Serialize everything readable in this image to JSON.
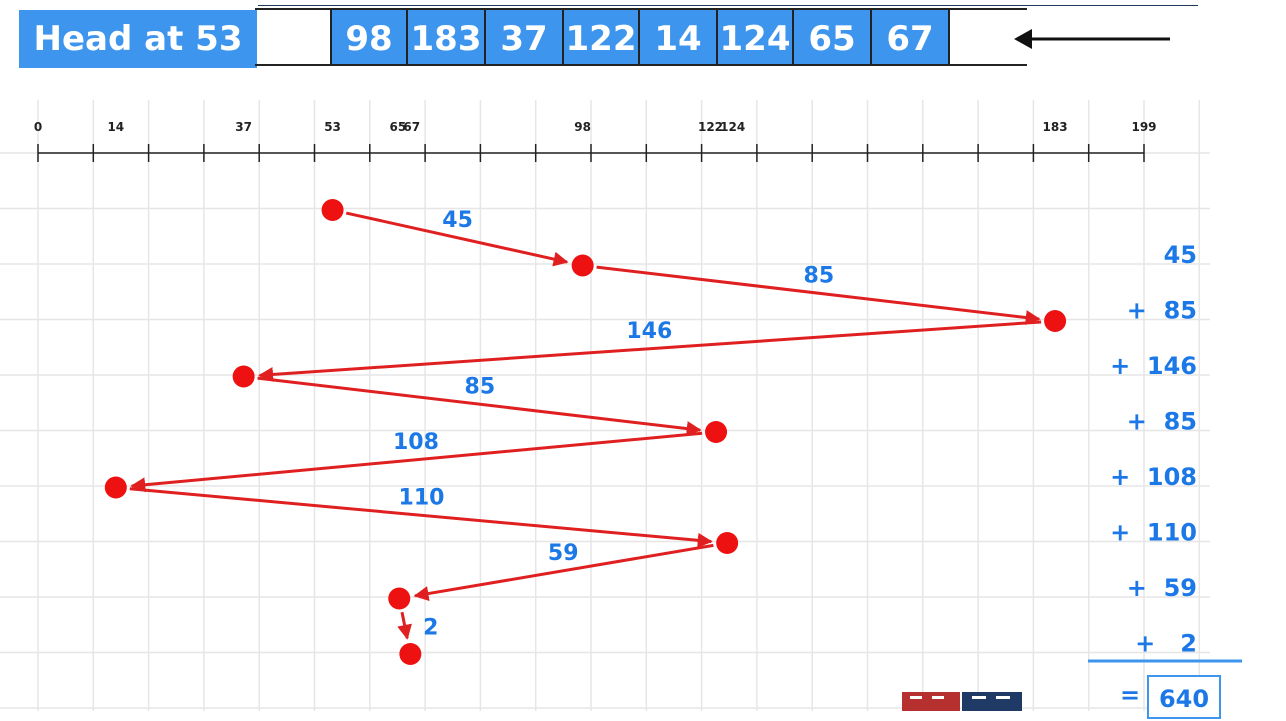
{
  "header": {
    "head_label": "Head at 53",
    "queue": [
      "98",
      "183",
      "37",
      "122",
      "14",
      "124",
      "65",
      "67"
    ]
  },
  "axis": {
    "min": 0,
    "max": 199,
    "tick_labels": [
      {
        "value": 0,
        "label": "0"
      },
      {
        "value": 14,
        "label": "14"
      },
      {
        "value": 37,
        "label": "37"
      },
      {
        "value": 53,
        "label": "53"
      },
      {
        "value": 65,
        "label": "65"
      },
      {
        "value": 67,
        "label": "67"
      },
      {
        "value": 98,
        "label": "98"
      },
      {
        "value": 122,
        "label": "122"
      },
      {
        "value": 124,
        "label": "124"
      },
      {
        "value": 183,
        "label": "183"
      },
      {
        "value": 199,
        "label": "199"
      }
    ]
  },
  "path": {
    "positions": [
      53,
      98,
      183,
      37,
      122,
      14,
      124,
      65,
      67
    ],
    "distances": [
      "45",
      "85",
      "146",
      "85",
      "108",
      "110",
      "59",
      "2"
    ],
    "point_color": "#ee1111",
    "arrow_color": "#e02020"
  },
  "summation": {
    "terms": [
      "45",
      "+  85",
      "+  146",
      "+  85",
      "+  108",
      "+  110",
      "+  59",
      "+   2"
    ],
    "equals": "=",
    "total": "640"
  }
}
